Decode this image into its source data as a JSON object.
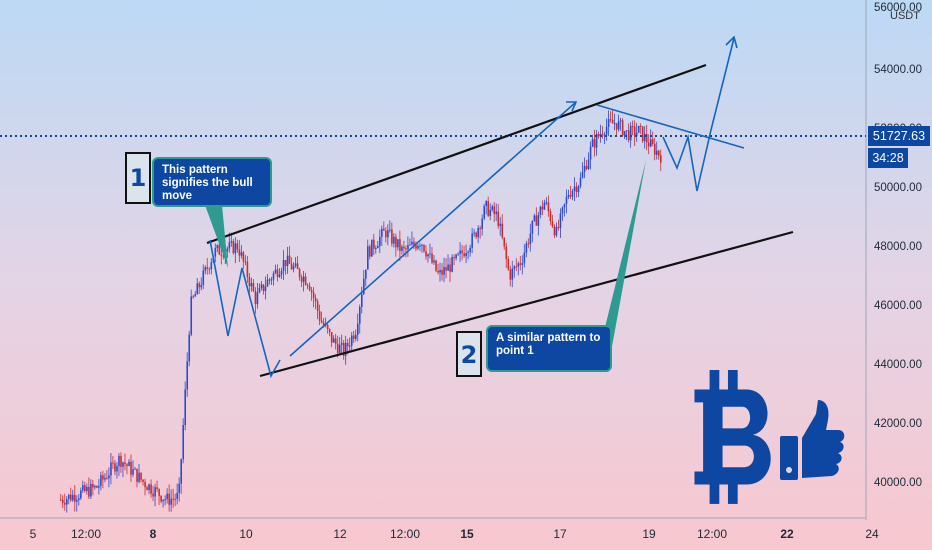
{
  "chart_data": {
    "type": "candlestick",
    "title": "",
    "quote_currency": "USDT",
    "y_axis": {
      "ticks": [
        40000,
        42000,
        44000,
        46000,
        48000,
        50000,
        52000,
        54000
      ],
      "tick_labels": [
        "40000.00",
        "42000.00",
        "44000.00",
        "46000.00",
        "48000.00",
        "50000.00",
        "52000.00",
        "54000.00"
      ],
      "top_partial_label": "56000.00",
      "range": [
        39000,
        56000
      ]
    },
    "x_axis": {
      "labels": [
        "5",
        "12:00",
        "8",
        "10",
        "12",
        "12:00",
        "15",
        "17",
        "19",
        "12:00",
        "22",
        "24"
      ]
    },
    "last_price": "51727.63",
    "countdown": "34:28",
    "candles_anchor_path": [
      [
        0,
        39400
      ],
      [
        6,
        39800
      ],
      [
        10,
        40800
      ],
      [
        14,
        40000
      ],
      [
        18,
        39400
      ],
      [
        20,
        39500
      ],
      [
        22,
        46000
      ],
      [
        26,
        47800
      ],
      [
        30,
        48000
      ],
      [
        33,
        46200
      ],
      [
        35,
        46800
      ],
      [
        38,
        47500
      ],
      [
        42,
        46800
      ],
      [
        44,
        45500
      ],
      [
        46,
        44800
      ],
      [
        48,
        44400
      ],
      [
        50,
        45200
      ],
      [
        52,
        47800
      ],
      [
        55,
        48500
      ],
      [
        58,
        47800
      ],
      [
        61,
        48200
      ],
      [
        64,
        47000
      ],
      [
        67,
        47500
      ],
      [
        70,
        48300
      ],
      [
        72,
        49300
      ],
      [
        74,
        49000
      ],
      [
        76,
        47000
      ],
      [
        78,
        47500
      ],
      [
        80,
        48700
      ],
      [
        82,
        49500
      ],
      [
        84,
        48400
      ],
      [
        86,
        49800
      ],
      [
        88,
        50200
      ],
      [
        90,
        51400
      ],
      [
        92,
        52000
      ],
      [
        94,
        52200
      ],
      [
        96,
        51800
      ],
      [
        98,
        51900
      ],
      [
        100,
        51400
      ],
      [
        102,
        51000
      ]
    ],
    "annotations": [
      {
        "label": "1",
        "text": "This pattern signifies the bull move"
      },
      {
        "label": "2",
        "text": "A similar pattern to point 1"
      }
    ],
    "logo_symbol": "B",
    "colors": {
      "up": "#2a4bd0",
      "down": "#d02a2a",
      "trendline": "#111111",
      "drawing": "#1565c0",
      "pointer": "#2f9a8f",
      "price_line": "#0d47a1",
      "logo": "#0d47a1"
    },
    "grid": false,
    "legend": "none"
  }
}
